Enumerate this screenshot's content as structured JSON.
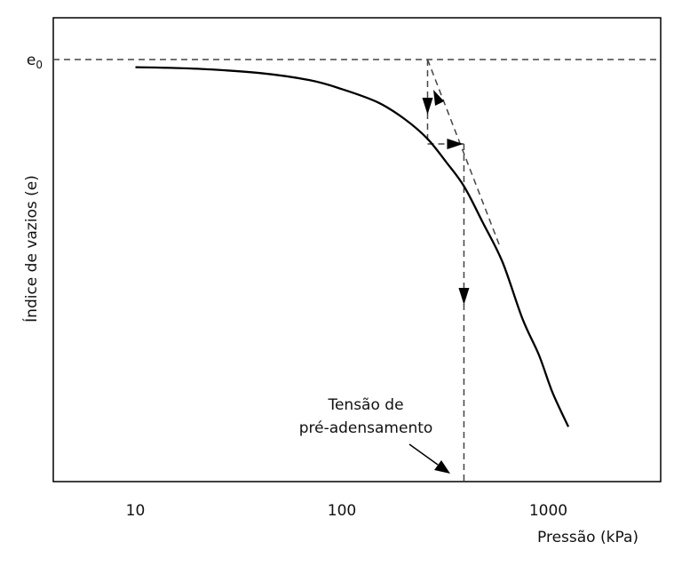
{
  "chart_data": {
    "type": "line",
    "title": "",
    "xlabel": "Pressão (kPa)",
    "ylabel": "Índice de vazios (e)",
    "xscale": "log",
    "xlim": [
      4,
      3500
    ],
    "ylim": [
      0,
      1
    ],
    "xticks": [
      10,
      100,
      1000
    ],
    "xtick_labels": [
      "10",
      "100",
      "1000"
    ],
    "ytick_labels": [
      "e0"
    ],
    "y_tick_label": {
      "base": "e",
      "subscript": "0"
    },
    "grid": false,
    "series": [
      {
        "x": [
          10,
          20,
          40,
          70,
          100,
          150,
          200,
          260,
          320,
          390,
          480,
          600,
          750,
          900,
          1050,
          1250
        ],
        "y": [
          0.982,
          0.978,
          0.968,
          0.951,
          0.93,
          0.898,
          0.86,
          0.812,
          0.757,
          0.7,
          0.615,
          0.52,
          0.385,
          0.3,
          0.21,
          0.13
        ]
      }
    ],
    "annotations": {
      "e0_level": 1.0,
      "casagrande_point": {
        "x": 260,
        "y": 1.0
      },
      "preconsolidation_pressure": 390,
      "label_lines": [
        "Tensão de",
        "pré-adensamento"
      ]
    },
    "colors": {
      "curve": "#000000",
      "construction": "#444444"
    }
  }
}
